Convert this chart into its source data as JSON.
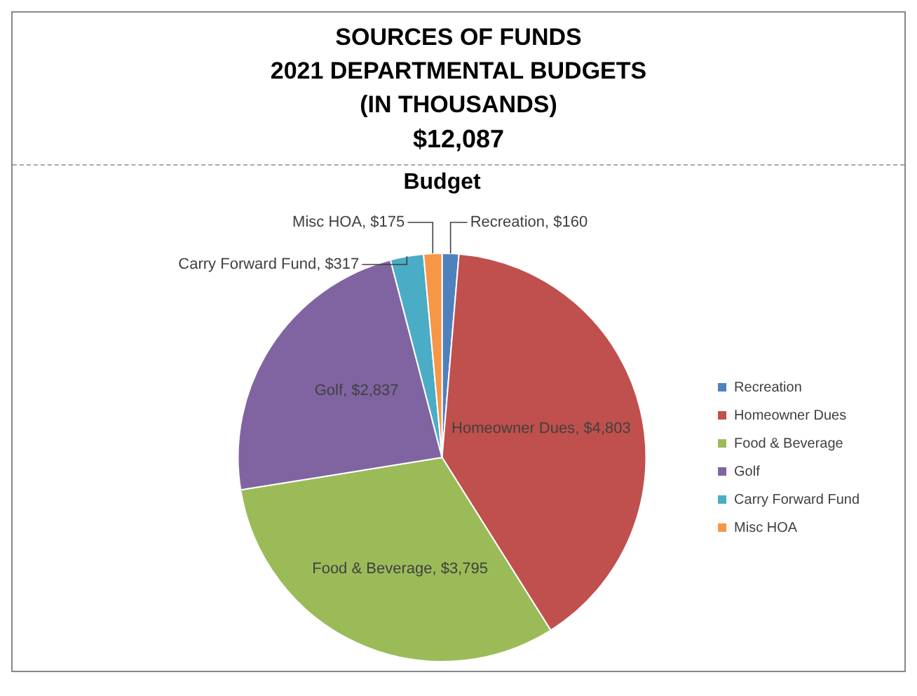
{
  "chart_data": {
    "type": "pie",
    "title": "SOURCES OF FUNDS\n2021 DEPARTMENTAL BUDGETS\n(IN THOUSANDS)",
    "subtitle": "$12,087",
    "annotations": [
      "Budget"
    ],
    "categories": [
      "Recreation",
      "Homeowner Dues",
      "Food & Beverage",
      "Golf",
      "Carry Forward Fund",
      "Misc HOA"
    ],
    "values": [
      160,
      4803,
      3795,
      2837,
      317,
      175
    ],
    "value_labels": [
      "Recreation, $160",
      "Homeowner Dues, $4,803",
      "Food & Beverage, $3,795",
      "Golf, $2,837",
      "Carry Forward Fund, $317",
      "Misc HOA, $175"
    ],
    "colors": [
      "#4f81bd",
      "#c0504d",
      "#9bbb59",
      "#8064a2",
      "#4bacc6",
      "#f79646"
    ],
    "legend": "right"
  }
}
